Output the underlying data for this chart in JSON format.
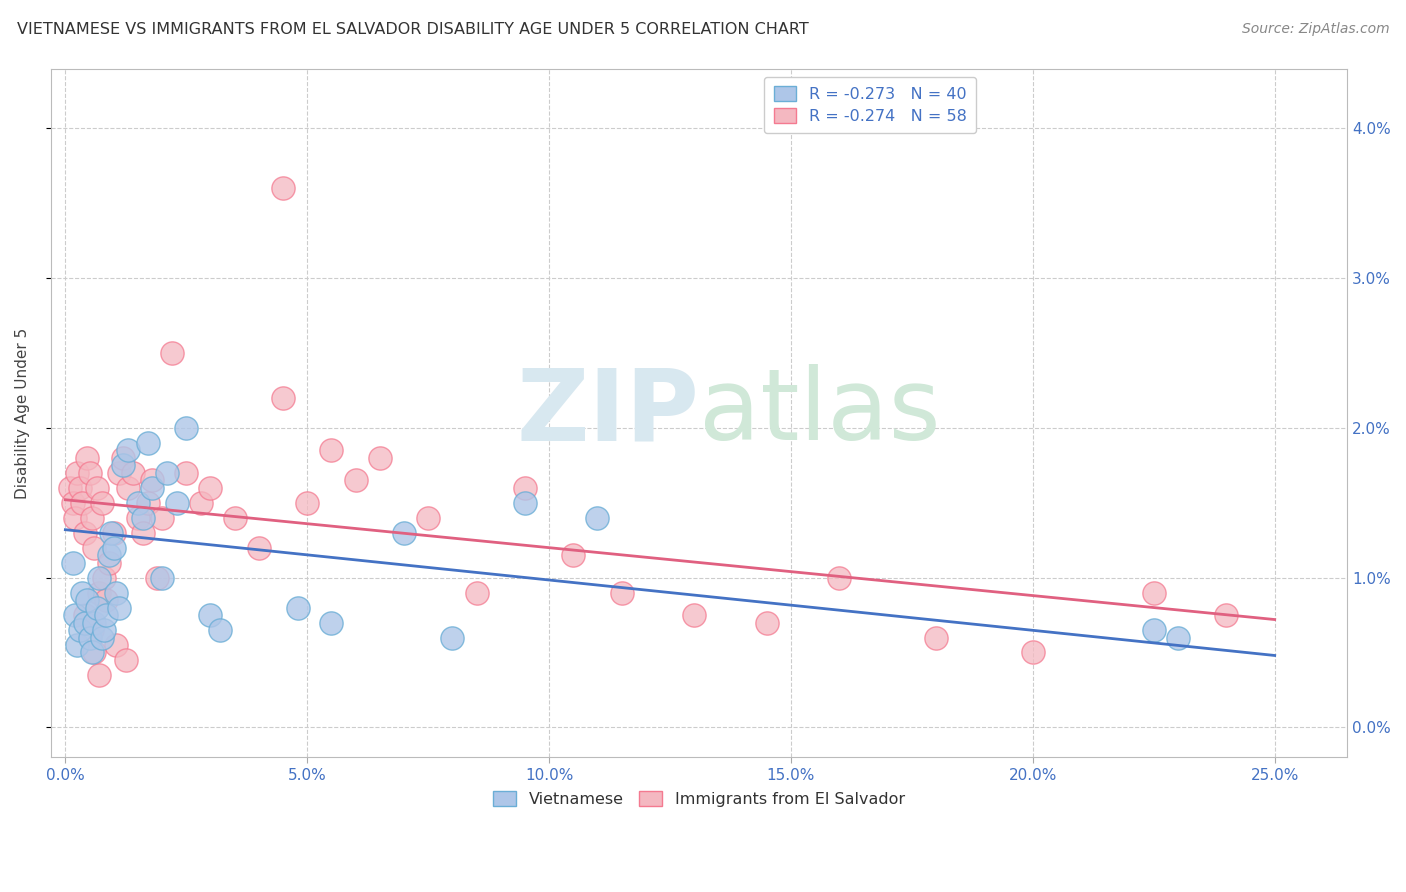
{
  "title": "VIETNAMESE VS IMMIGRANTS FROM EL SALVADOR DISABILITY AGE UNDER 5 CORRELATION CHART",
  "source": "Source: ZipAtlas.com",
  "ylabel": "Disability Age Under 5",
  "watermark": "ZIPatlas",
  "blue_color": "#aec6e8",
  "pink_color": "#f4b8c1",
  "blue_edge": "#6baed6",
  "pink_edge": "#f47a90",
  "blue_line_color": "#4472c4",
  "pink_line_color": "#e06080",
  "xtick_vals": [
    0.0,
    5.0,
    10.0,
    15.0,
    20.0,
    25.0
  ],
  "ytick_vals": [
    0.0,
    1.0,
    2.0,
    3.0,
    4.0
  ],
  "xlim": [
    -0.3,
    26.5
  ],
  "ylim": [
    -0.2,
    4.4
  ],
  "viet_line_x0": 0.0,
  "viet_line_y0": 1.32,
  "viet_line_x1": 25.0,
  "viet_line_y1": 0.48,
  "salv_line_x0": 0.0,
  "salv_line_y0": 1.52,
  "salv_line_x1": 25.0,
  "salv_line_y1": 0.72,
  "vietnamese_x": [
    0.15,
    0.2,
    0.25,
    0.3,
    0.35,
    0.4,
    0.45,
    0.5,
    0.55,
    0.6,
    0.65,
    0.7,
    0.75,
    0.8,
    0.85,
    0.9,
    0.95,
    1.0,
    1.05,
    1.1,
    1.2,
    1.3,
    1.5,
    1.6,
    1.7,
    1.8,
    2.0,
    2.1,
    2.3,
    2.5,
    3.0,
    3.2,
    4.8,
    5.5,
    7.0,
    8.0,
    9.5,
    11.0,
    22.5,
    23.0
  ],
  "vietnamese_y": [
    1.1,
    0.75,
    0.55,
    0.65,
    0.9,
    0.7,
    0.85,
    0.6,
    0.5,
    0.7,
    0.8,
    1.0,
    0.6,
    0.65,
    0.75,
    1.15,
    1.3,
    1.2,
    0.9,
    0.8,
    1.75,
    1.85,
    1.5,
    1.4,
    1.9,
    1.6,
    1.0,
    1.7,
    1.5,
    2.0,
    0.75,
    0.65,
    0.8,
    0.7,
    1.3,
    0.6,
    1.5,
    1.4,
    0.65,
    0.6
  ],
  "salvador_x": [
    0.1,
    0.15,
    0.2,
    0.25,
    0.3,
    0.35,
    0.4,
    0.45,
    0.5,
    0.55,
    0.6,
    0.65,
    0.7,
    0.75,
    0.8,
    0.9,
    1.0,
    1.1,
    1.2,
    1.3,
    1.4,
    1.5,
    1.6,
    1.7,
    1.8,
    1.9,
    2.0,
    2.2,
    2.5,
    2.8,
    3.0,
    3.5,
    4.0,
    4.5,
    5.5,
    6.0,
    6.5,
    7.5,
    8.5,
    9.5,
    10.5,
    11.5,
    13.0,
    14.5,
    16.0,
    18.0,
    20.0,
    22.5,
    24.0,
    5.0,
    0.55,
    0.85,
    1.05,
    1.25,
    0.7,
    0.4,
    0.6,
    4.5
  ],
  "salvador_y": [
    1.6,
    1.5,
    1.4,
    1.7,
    1.6,
    1.5,
    1.3,
    1.8,
    1.7,
    1.4,
    1.2,
    1.6,
    0.9,
    1.5,
    1.0,
    1.1,
    1.3,
    1.7,
    1.8,
    1.6,
    1.7,
    1.4,
    1.3,
    1.5,
    1.65,
    1.0,
    1.4,
    2.5,
    1.7,
    1.5,
    1.6,
    1.4,
    1.2,
    2.2,
    1.85,
    1.65,
    1.8,
    1.4,
    0.9,
    1.6,
    1.15,
    0.9,
    0.75,
    0.7,
    1.0,
    0.6,
    0.5,
    0.9,
    0.75,
    1.5,
    0.65,
    0.85,
    0.55,
    0.45,
    0.35,
    0.75,
    0.5,
    3.6
  ]
}
